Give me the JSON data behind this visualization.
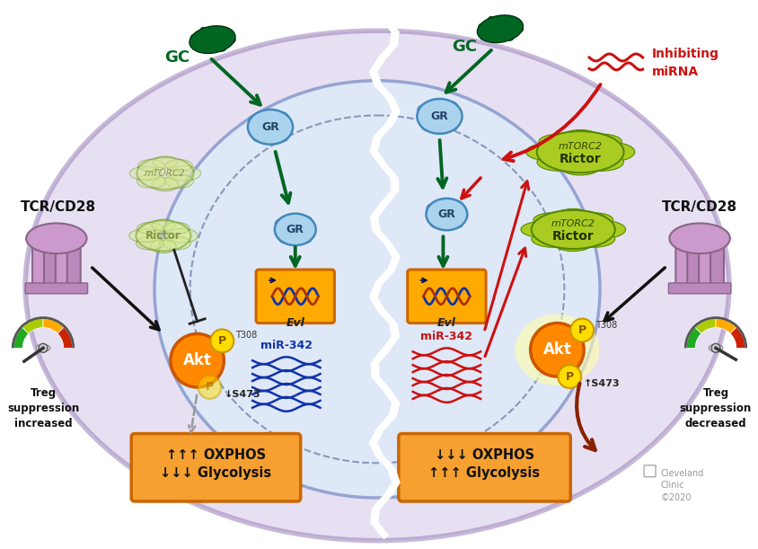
{
  "bg_color": "#ffffff",
  "cell_outer_fill": "#d4c8e8",
  "cell_outer_edge": "#9980b8",
  "cell_inner_fill": "#ddeaf8",
  "cell_inner_edge": "#8899cc",
  "nucleus_fill": "#c8d8f0",
  "gc_color": "#006622",
  "gr_fill": "#aad4ee",
  "gr_edge": "#4488bb",
  "akt_fill": "#ff8800",
  "akt_edge": "#cc5500",
  "phospho_fill": "#ffdd00",
  "phospho_edge": "#cc9900",
  "evl_fill": "#ffaa00",
  "evl_edge": "#cc6600",
  "dna_color": "#1133aa",
  "mir_blue": "#1133aa",
  "mir_red": "#cc1111",
  "cloud_fill_left": "#d4e888",
  "cloud_fill_right": "#aacc22",
  "cloud_edge": "#558800",
  "tcr_fill": "#bb99bb",
  "tcr_edge": "#886688",
  "arrow_green": "#006622",
  "arrow_black": "#111111",
  "arrow_red": "#cc1111",
  "arrow_darkred": "#882200",
  "inhibit_color": "#333333",
  "box_fill": "#f5a030",
  "box_edge": "#cc6600",
  "gauge_green": "#22aa22",
  "gauge_yellow": "#aacc00",
  "gauge_orange": "#ffaa00",
  "gauge_red": "#cc2200",
  "left_box_text1": "↑↑↑ OXPHOS",
  "left_box_text2": "↓↓↓ Glycolysis",
  "right_box_text1": "↓↓↓ OXPHOS",
  "right_box_text2": "↑↑↑ Glycolysis",
  "treg_left": "Treg\nsuppression\nincreased",
  "treg_right": "Treg\nsuppression\ndecreased",
  "cleveland": "Cleveland\nClinic\n©2020",
  "tcr_left_label": "TCR/CD28",
  "tcr_right_label": "TCR/CD28",
  "inhibiting_mirna": "Inhibiting\nmiRNA"
}
